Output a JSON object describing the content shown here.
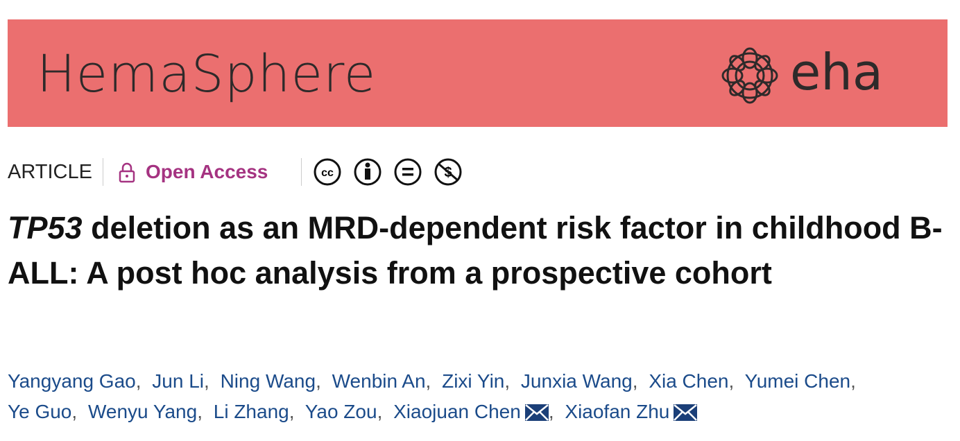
{
  "banner": {
    "journal": "HemaSphere",
    "society": "eha"
  },
  "meta": {
    "article_type": "ARTICLE",
    "access": "Open Access"
  },
  "title": {
    "gene": "TP53",
    "rest": " deletion as an MRD-dependent risk factor in childhood B-ALL: A post hoc analysis from a prospective cohort"
  },
  "author_separator": ",",
  "authors": [
    {
      "name": "Yangyang Gao",
      "corresponding": false
    },
    {
      "name": "Jun Li",
      "corresponding": false
    },
    {
      "name": "Ning Wang",
      "corresponding": false
    },
    {
      "name": "Wenbin An",
      "corresponding": false
    },
    {
      "name": "Zixi Yin",
      "corresponding": false
    },
    {
      "name": "Junxia Wang",
      "corresponding": false
    },
    {
      "name": "Xia Chen",
      "corresponding": false
    },
    {
      "name": "Yumei Chen",
      "corresponding": false
    },
    {
      "name": "Ye Guo",
      "corresponding": false
    },
    {
      "name": "Wenyu Yang",
      "corresponding": false
    },
    {
      "name": "Li Zhang",
      "corresponding": false
    },
    {
      "name": "Yao Zou",
      "corresponding": false
    },
    {
      "name": "Xiaojuan Chen",
      "corresponding": true
    },
    {
      "name": "Xiaofan Zhu",
      "corresponding": true
    }
  ]
}
